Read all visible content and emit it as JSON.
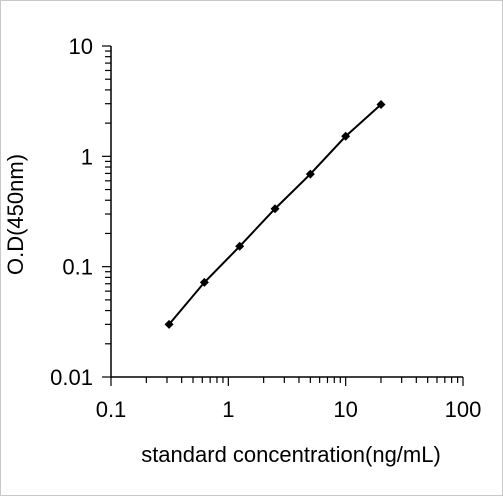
{
  "chart_data": {
    "type": "line",
    "title": "",
    "xlabel": "standard concentration(ng/mL)",
    "ylabel": "O.D(450nm)",
    "x_scale": "log",
    "y_scale": "log",
    "xlim": [
      0.1,
      100
    ],
    "ylim": [
      0.01,
      10
    ],
    "x_ticks": [
      "0.1",
      "1",
      "10",
      "100"
    ],
    "y_ticks": [
      "0.01",
      "0.1",
      "1",
      "10"
    ],
    "grid": false,
    "legend": "none",
    "marker": "diamond",
    "line_color": "#000000",
    "series": [
      {
        "x": [
          0.3125,
          0.625,
          1.25,
          2.5,
          5,
          10,
          20
        ],
        "y": [
          0.03,
          0.072,
          0.153,
          0.335,
          0.69,
          1.52,
          2.95
        ]
      }
    ]
  }
}
